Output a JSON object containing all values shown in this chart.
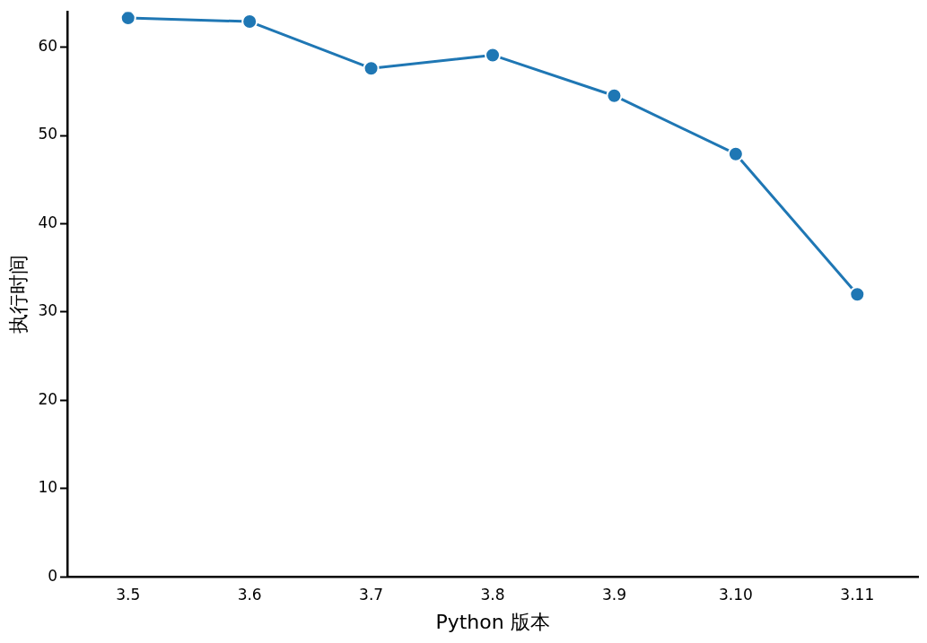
{
  "chart_data": {
    "type": "line",
    "xlabel": "Python 版本",
    "ylabel": "执行时间",
    "categories": [
      "3.5",
      "3.6",
      "3.7",
      "3.8",
      "3.9",
      "3.10",
      "3.11"
    ],
    "series": [
      {
        "color": "#1f77b4",
        "values": [
          63.3,
          62.9,
          57.6,
          59.1,
          54.5,
          47.9,
          32.0
        ]
      }
    ],
    "ylim": [
      0,
      64
    ],
    "yticks": [
      0,
      10,
      20,
      30,
      40,
      50,
      60
    ],
    "grid": false,
    "legend": false,
    "marker": "circle",
    "line_style": "solid"
  }
}
